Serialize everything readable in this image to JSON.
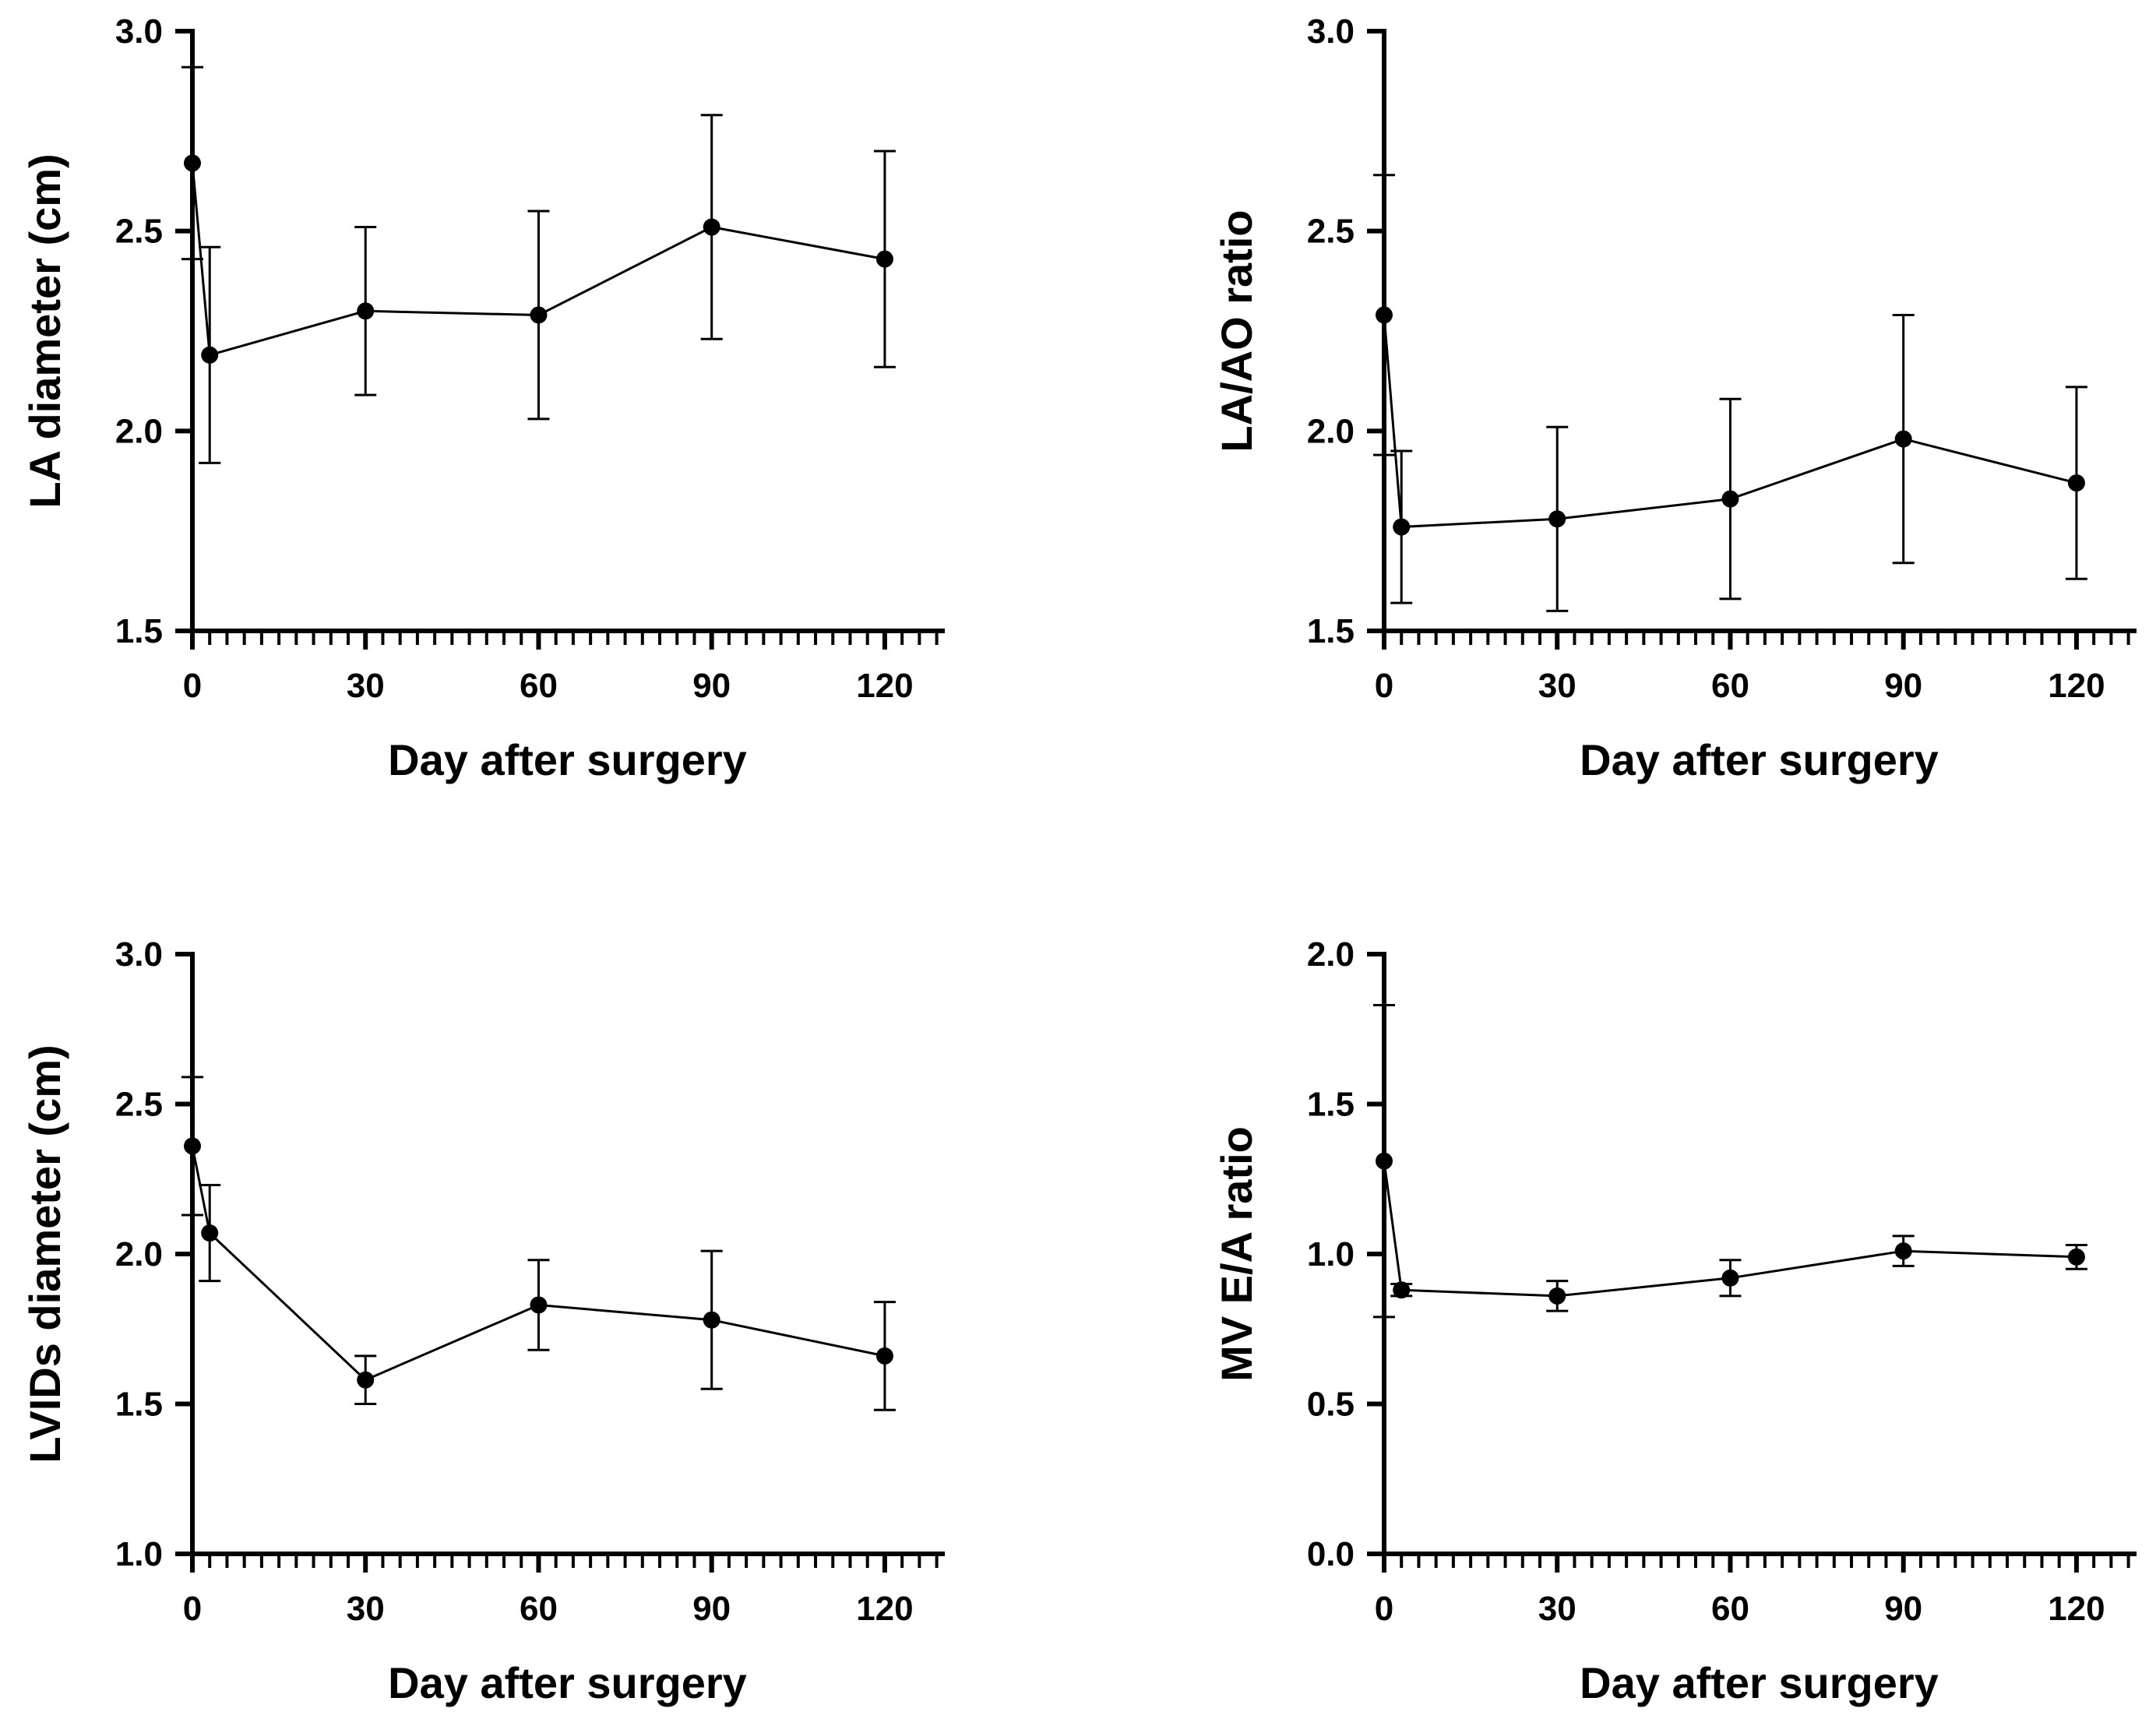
{
  "chart_data": [
    {
      "type": "line",
      "panel": "top-left",
      "title": "",
      "xlabel": "Day after surgery",
      "ylabel": "LA diameter (cm)",
      "xlim": [
        0,
        130
      ],
      "ylim": [
        1.5,
        3.0
      ],
      "xticks": [
        "0",
        "30",
        "60",
        "90",
        "120"
      ],
      "yticks": [
        "1.5",
        "2.0",
        "2.5",
        "3.0"
      ],
      "grid": false,
      "series": [
        {
          "name": "LA diameter",
          "x": [
            0,
            3,
            30,
            60,
            90,
            120
          ],
          "values": [
            2.67,
            2.19,
            2.3,
            2.29,
            2.51,
            2.43
          ],
          "error": [
            0.24,
            0.27,
            0.21,
            0.26,
            0.28,
            0.27
          ]
        }
      ]
    },
    {
      "type": "line",
      "panel": "top-right",
      "title": "",
      "xlabel": "Day after surgery",
      "ylabel": "LA/AO ratio",
      "xlim": [
        0,
        130
      ],
      "ylim": [
        1.5,
        3.0
      ],
      "xticks": [
        "0",
        "30",
        "60",
        "90",
        "120"
      ],
      "yticks": [
        "1.5",
        "2.0",
        "2.5",
        "3.0"
      ],
      "grid": false,
      "series": [
        {
          "name": "LA/AO ratio",
          "x": [
            0,
            3,
            30,
            60,
            90,
            120
          ],
          "values": [
            2.29,
            1.76,
            1.78,
            1.83,
            1.98,
            1.87
          ],
          "error": [
            0.35,
            0.19,
            0.23,
            0.25,
            0.31,
            0.24
          ]
        }
      ]
    },
    {
      "type": "line",
      "panel": "bottom-left",
      "title": "",
      "xlabel": "Day after surgery",
      "ylabel": "LVIDs diameter (cm)",
      "xlim": [
        0,
        130
      ],
      "ylim": [
        1.0,
        3.0
      ],
      "xticks": [
        "0",
        "30",
        "60",
        "90",
        "120"
      ],
      "yticks": [
        "1.0",
        "1.5",
        "2.0",
        "2.5",
        "3.0"
      ],
      "grid": false,
      "series": [
        {
          "name": "LVIDs diameter",
          "x": [
            0,
            3,
            30,
            60,
            90,
            120
          ],
          "values": [
            2.36,
            2.07,
            1.58,
            1.83,
            1.78,
            1.66
          ],
          "error": [
            0.23,
            0.16,
            0.08,
            0.15,
            0.23,
            0.18
          ]
        }
      ]
    },
    {
      "type": "line",
      "panel": "bottom-right",
      "title": "",
      "xlabel": "Day after surgery",
      "ylabel": "MV E/A ratio",
      "xlim": [
        0,
        130
      ],
      "ylim": [
        0.0,
        2.0
      ],
      "xticks": [
        "0",
        "30",
        "60",
        "90",
        "120"
      ],
      "yticks": [
        "0.0",
        "0.5",
        "1.0",
        "1.5",
        "2.0"
      ],
      "grid": false,
      "series": [
        {
          "name": "MV E/A ratio",
          "x": [
            0,
            3,
            30,
            60,
            90,
            120
          ],
          "values": [
            1.31,
            0.88,
            0.86,
            0.92,
            1.01,
            0.99
          ],
          "error": [
            0.52,
            0.02,
            0.05,
            0.06,
            0.05,
            0.04
          ]
        }
      ]
    }
  ]
}
